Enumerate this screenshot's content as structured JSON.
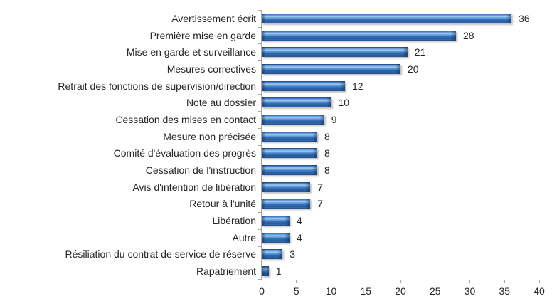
{
  "chart_data": {
    "type": "bar",
    "orientation": "horizontal",
    "title": "",
    "categories": [
      "Avertissement écrit",
      "Première mise en garde",
      "Mise en garde et surveillance",
      "Mesures correctives",
      "Retrait des fonctions de supervision/direction",
      "Note au dossier",
      "Cessation des mises en contact",
      "Mesure non précisée",
      "Comité d'évaluation des progrès",
      "Cessation de l'instruction",
      "Avis d'intention de libération",
      "Retour à l'unité",
      "Libération",
      "Autre",
      "Résiliation du contrat de service de réserve",
      "Rapatriement"
    ],
    "values": [
      36,
      28,
      21,
      20,
      12,
      10,
      9,
      8,
      8,
      8,
      7,
      7,
      4,
      4,
      3,
      1
    ],
    "data_labels": [
      "36",
      "28",
      "21",
      "20",
      "12",
      "10",
      "9",
      "8",
      "8",
      "8",
      "7",
      "7",
      "4",
      "4",
      "3",
      "1"
    ],
    "xlabel": "",
    "ylabel": "",
    "xlim": [
      0,
      40
    ],
    "x_tick_labels": [
      "0",
      "5",
      "10",
      "15",
      "20",
      "25",
      "30",
      "35",
      "40"
    ],
    "x_tick_values": [
      0,
      5,
      10,
      15,
      20,
      25,
      30,
      35,
      40
    ],
    "grid": false,
    "legend": false,
    "colors": {
      "bar_main": "#3E78C4",
      "bar_highlight": "#9CC7F0",
      "bar_edge_dark": "#1E3E68",
      "axis_line": "#A6A6A6",
      "text": "#262626",
      "background": "#FFFFFF"
    }
  }
}
